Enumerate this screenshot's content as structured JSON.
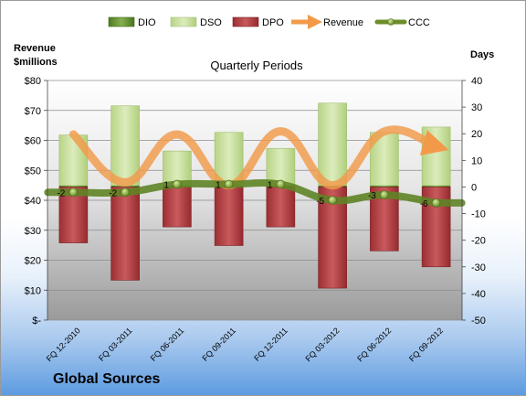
{
  "chart_data": {
    "type": "combo",
    "title": "Quarterly Periods",
    "company": "Global Sources",
    "left_axis_label": [
      "Revenue",
      "$millions"
    ],
    "right_axis_label": "Days",
    "categories": [
      "FQ 12-2010",
      "FQ 03-2011",
      "FQ 06-2011",
      "FQ 09-2011",
      "FQ 12-2011",
      "FQ 03-2012",
      "FQ 06-2012",
      "FQ 09-2012"
    ],
    "left_ticks": [
      "$-",
      "$10",
      "$20",
      "$30",
      "$40",
      "$50",
      "$60",
      "$70",
      "$80"
    ],
    "left_ylim": [
      0,
      80
    ],
    "right_ticks": [
      "-50",
      "-40",
      "-30",
      "-20",
      "-10",
      "0",
      "10",
      "20",
      "30",
      "40"
    ],
    "right_ylim": [
      -50,
      40
    ],
    "series": [
      {
        "name": "DIO",
        "color": "#5a8a2a",
        "values": [
          0.5,
          0.5,
          0.5,
          0.5,
          0.5,
          0.5,
          0.5,
          0.5
        ]
      },
      {
        "name": "DSO",
        "color": "#c6de9a",
        "values": [
          19,
          30,
          13,
          20,
          14,
          31,
          20,
          22
        ]
      },
      {
        "name": "DPO",
        "color": "#b03a3e",
        "values": [
          -21,
          -35,
          -15,
          -22,
          -15,
          -38,
          -24,
          -30
        ]
      },
      {
        "name": "Revenue",
        "color": "#f29a4a",
        "values": [
          62,
          46,
          62,
          45,
          63,
          45,
          63,
          58
        ]
      },
      {
        "name": "CCC",
        "color": "#7a9a3a",
        "values": [
          -2,
          -2,
          1,
          1,
          1,
          -5,
          -3,
          -6
        ]
      }
    ],
    "ccc_labels": [
      "-2",
      "-2",
      "1",
      "1",
      "1",
      "-5",
      "-3",
      "-6"
    ]
  }
}
